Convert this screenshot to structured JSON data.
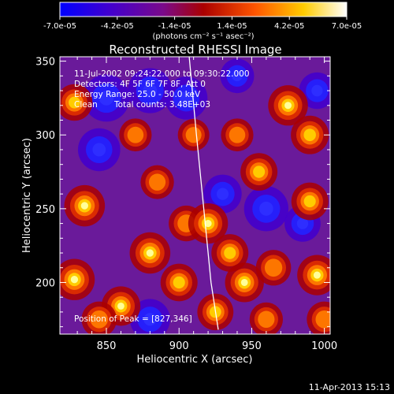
{
  "colorbar": {
    "tick_labels": [
      "-7.0e-05",
      "-4.2e-05",
      "-1.4e-05",
      "1.4e-05",
      "4.2e-05",
      "7.0e-05"
    ],
    "tick_values": [
      -7e-05,
      -4.2e-05,
      -1.4e-05,
      1.4e-05,
      4.2e-05,
      7e-05
    ],
    "range": [
      -7e-05,
      7e-05
    ],
    "units": "(photons cm⁻² s⁻¹ asec⁻²)",
    "colormap": [
      "#0000ff",
      "#4400cc",
      "#7a0a8a",
      "#aa0000",
      "#ff5500",
      "#ffcc00",
      "#ffffff"
    ]
  },
  "chart_data": {
    "type": "heatmap",
    "title": "Reconstructed RHESSI Image",
    "xlabel": "Heliocentric X (arcsec)",
    "ylabel": "Heliocentric Y (arcsec)",
    "xlim": [
      818,
      1004
    ],
    "ylim": [
      165,
      353
    ],
    "x_ticks": [
      850,
      900,
      950,
      1000
    ],
    "y_ticks": [
      200,
      250,
      300,
      350
    ],
    "x_tick_labels": [
      "850",
      "900",
      "950",
      "1000"
    ],
    "y_tick_labels": [
      "200",
      "250",
      "300",
      "350"
    ],
    "limb_curve": {
      "x": [
        907,
        912,
        917,
        922,
        927
      ],
      "y": [
        353,
        300,
        250,
        200,
        168
      ]
    },
    "sources": [
      {
        "x": 828,
        "y": 322,
        "v": 0.75
      },
      {
        "x": 835,
        "y": 252,
        "v": 1.0
      },
      {
        "x": 828,
        "y": 202,
        "v": 1.0
      },
      {
        "x": 860,
        "y": 184,
        "v": 0.9
      },
      {
        "x": 880,
        "y": 220,
        "v": 1.0
      },
      {
        "x": 905,
        "y": 240,
        "v": 0.7
      },
      {
        "x": 885,
        "y": 268,
        "v": 0.6
      },
      {
        "x": 920,
        "y": 240,
        "v": 0.95
      },
      {
        "x": 935,
        "y": 220,
        "v": 0.8
      },
      {
        "x": 945,
        "y": 200,
        "v": 0.9
      },
      {
        "x": 965,
        "y": 210,
        "v": 0.7
      },
      {
        "x": 995,
        "y": 205,
        "v": 0.95
      },
      {
        "x": 975,
        "y": 320,
        "v": 0.95
      },
      {
        "x": 990,
        "y": 300,
        "v": 0.85
      },
      {
        "x": 990,
        "y": 255,
        "v": 0.8
      },
      {
        "x": 955,
        "y": 275,
        "v": 0.8
      },
      {
        "x": 940,
        "y": 300,
        "v": 0.55
      },
      {
        "x": 910,
        "y": 300,
        "v": 0.5
      },
      {
        "x": 925,
        "y": 180,
        "v": 0.75
      },
      {
        "x": 960,
        "y": 175,
        "v": 0.6
      },
      {
        "x": 845,
        "y": 175,
        "v": 0.7
      },
      {
        "x": 870,
        "y": 300,
        "v": 0.55
      },
      {
        "x": 900,
        "y": 200,
        "v": 0.8
      },
      {
        "x": 1000,
        "y": 175,
        "v": 0.7
      }
    ],
    "negatives": [
      {
        "x": 850,
        "y": 325,
        "v": 1.0
      },
      {
        "x": 880,
        "y": 330,
        "v": 0.9
      },
      {
        "x": 845,
        "y": 290,
        "v": 0.8
      },
      {
        "x": 905,
        "y": 325,
        "v": 0.8
      },
      {
        "x": 960,
        "y": 250,
        "v": 0.9
      },
      {
        "x": 930,
        "y": 260,
        "v": 0.6
      },
      {
        "x": 985,
        "y": 240,
        "v": 0.5
      },
      {
        "x": 880,
        "y": 175,
        "v": 0.7
      },
      {
        "x": 995,
        "y": 330,
        "v": 0.5
      },
      {
        "x": 940,
        "y": 340,
        "v": 0.4
      }
    ]
  },
  "info": {
    "time_range": "11-Jul-2002 09:24:22.000 to 09:30:22.000",
    "detectors": "Detectors: 4F 5F 6F 7F 8F, Att 0",
    "energy": "Energy Range: 25.0 - 50.0 keV",
    "clean": "Clean",
    "counts": "Total counts: 3.48E+03",
    "peak": "Position of Peak = [827,346]"
  },
  "footer": {
    "date": "11-Apr-2013 15:13"
  }
}
